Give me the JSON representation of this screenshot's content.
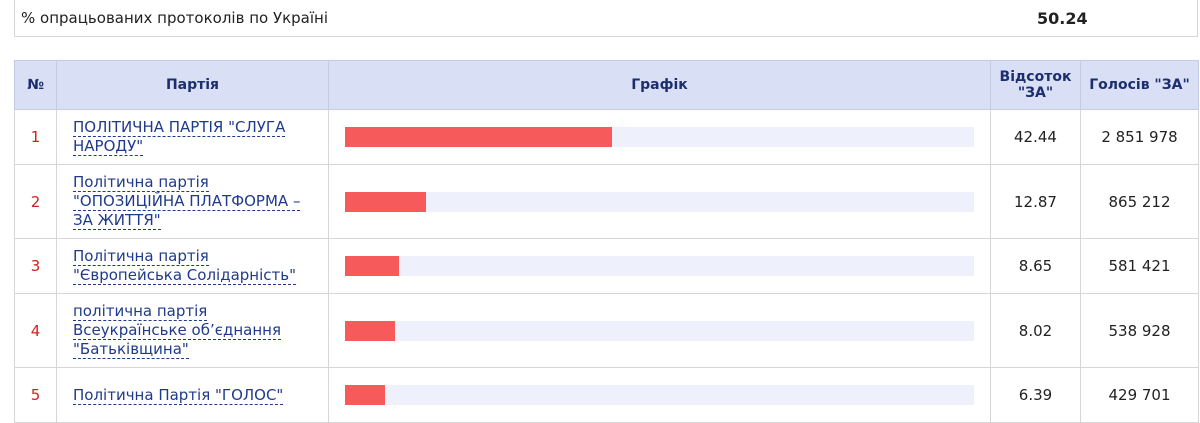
{
  "header": {
    "label": "% опрацьованих протоколів по Україні",
    "value": 50.24
  },
  "table": {
    "columns": [
      "№",
      "Партія",
      "Графік",
      "Відсоток \"ЗА\"",
      "Голосів \"ЗА\""
    ],
    "rows": [
      [
        1,
        "ПОЛІТИЧНА ПАРТІЯ \"СЛУГА НАРОДУ\"",
        42.44,
        "2 851 978"
      ],
      [
        2,
        "Політична партія \"ОПОЗИЦІЙНА ПЛАТФОРМА – ЗА ЖИТТЯ\"",
        12.87,
        "865 212"
      ],
      [
        3,
        "Політична партія \"Європейська Солідарність\"",
        8.65,
        "581 421"
      ],
      [
        4,
        "політична партія Всеукраїнське об’єднання \"Батьківщина\"",
        8.02,
        "538 928"
      ],
      [
        5,
        "Політична Партія \"ГОЛОС\"",
        6.39,
        "429 701"
      ]
    ]
  }
}
